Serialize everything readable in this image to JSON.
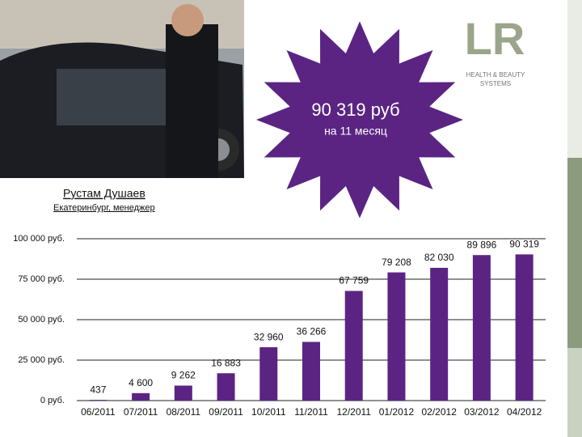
{
  "slide": {
    "headline": "90 319 руб",
    "headline_sub": "на 11 месяц",
    "person_name": "Рустам Душаев",
    "person_role": "Екатеринбург, менеджер",
    "logo": "LR",
    "logo_line1": "HEALTH & BEAUTY",
    "logo_line2": "SYSTEMS"
  },
  "chart_data": {
    "type": "bar",
    "categories": [
      "06/2011",
      "07/2011",
      "08/2011",
      "09/2011",
      "10/2011",
      "11/2011",
      "12/2011",
      "01/2012",
      "02/2012",
      "03/2012",
      "04/2012"
    ],
    "values": [
      437,
      4600,
      9262,
      16883,
      32960,
      36266,
      67759,
      79208,
      82030,
      89896,
      90319
    ],
    "value_labels": [
      "437",
      "4 600",
      "9 262",
      "16 883",
      "32 960",
      "36 266",
      "67 759",
      "79 208",
      "82 030",
      "89 896",
      "90 319"
    ],
    "color": "#5b2483",
    "ylim": [
      0,
      100000
    ],
    "yticks": [
      {
        "value": 0,
        "label": "0 руб."
      },
      {
        "value": 25000,
        "label": "25 000 руб."
      },
      {
        "value": 50000,
        "label": "50 000 руб."
      },
      {
        "value": 75000,
        "label": "75 000 руб."
      },
      {
        "value": 100000,
        "label": "100 000 руб."
      }
    ],
    "grid": true
  }
}
